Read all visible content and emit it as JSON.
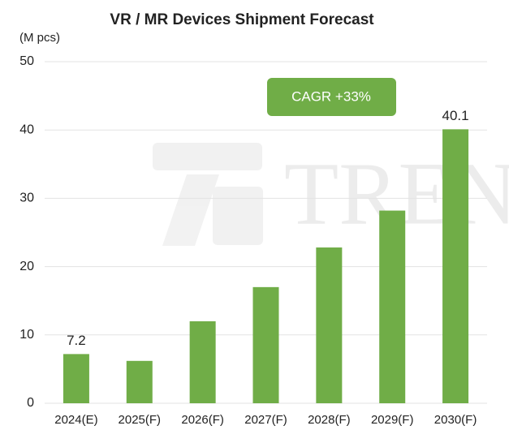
{
  "chart_data": {
    "type": "bar",
    "title": "VR / MR Devices Shipment Forecast",
    "y_axis_label": "(M pcs)",
    "categories": [
      "2024(E)",
      "2025(F)",
      "2026(F)",
      "2027(F)",
      "2028(F)",
      "2029(F)",
      "2030(F)"
    ],
    "values": [
      7.2,
      6.2,
      12.0,
      17.0,
      22.8,
      28.2,
      40.1
    ],
    "value_labels": [
      "7.2",
      null,
      null,
      null,
      null,
      null,
      "40.1"
    ],
    "color": "#70ad47",
    "ylim": [
      0,
      50
    ],
    "yticks": [
      0,
      10,
      20,
      30,
      40,
      50
    ],
    "grid": true,
    "annotation": "CAGR +33%",
    "watermark": "TREN"
  }
}
